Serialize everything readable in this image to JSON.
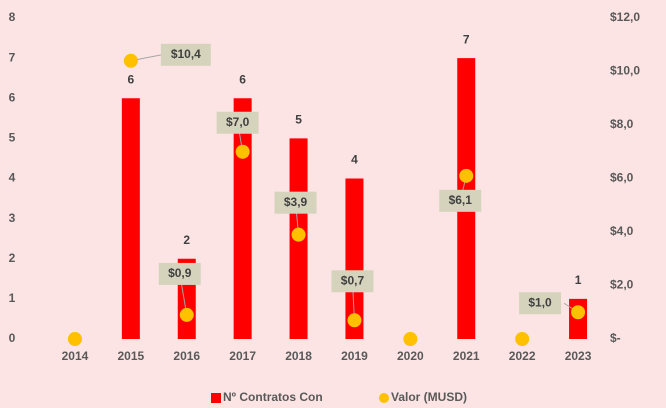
{
  "chart_data": {
    "type": "bar",
    "categories": [
      "2014",
      "2015",
      "2016",
      "2017",
      "2018",
      "2019",
      "2020",
      "2021",
      "2022",
      "2023"
    ],
    "series": [
      {
        "name": "Nº Contratos Con",
        "type": "bar",
        "color": "#ff0000",
        "values": [
          0,
          6,
          2,
          6,
          5,
          4,
          0,
          7,
          0,
          1
        ],
        "value_labels": [
          null,
          "6",
          "2",
          "6",
          "5",
          "4",
          null,
          "7",
          null,
          "1"
        ]
      },
      {
        "name": "Valor (MUSD)",
        "type": "scatter",
        "axis": "y2",
        "color": "#ffc000",
        "values": [
          0,
          10.4,
          0.9,
          7.0,
          3.9,
          0.7,
          0,
          6.1,
          0,
          1.0
        ],
        "value_labels": [
          null,
          "$10,4",
          "$0,9",
          "$7,0",
          "$3,9",
          "$0,7",
          null,
          "$6,1",
          null,
          "$1,0"
        ]
      }
    ],
    "ylim": [
      0,
      8
    ],
    "yticks": [
      0,
      1,
      2,
      3,
      4,
      5,
      6,
      7,
      8
    ],
    "y2lim": [
      0,
      12
    ],
    "y2ticks": [
      {
        "value": 0,
        "label": "$-"
      },
      {
        "value": 2,
        "label": "$2,0"
      },
      {
        "value": 4,
        "label": "$4,0"
      },
      {
        "value": 6,
        "label": "$6,0"
      },
      {
        "value": 8,
        "label": "$8,0"
      },
      {
        "value": 10,
        "label": "$10,0"
      },
      {
        "value": 12,
        "label": "$12,0"
      }
    ],
    "legend": "bottom"
  }
}
